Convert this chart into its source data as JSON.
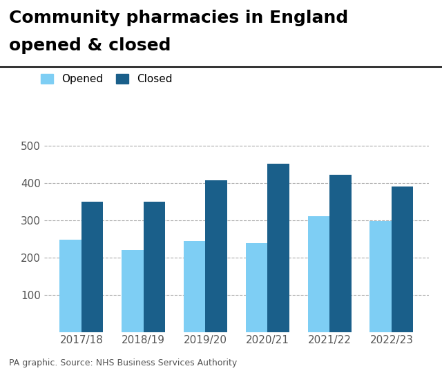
{
  "years": [
    "2017/18",
    "2018/19",
    "2019/20",
    "2020/21",
    "2021/22",
    "2022/23"
  ],
  "opened": [
    247,
    220,
    243,
    238,
    310,
    297
  ],
  "closed": [
    350,
    350,
    407,
    452,
    422,
    390
  ],
  "color_opened": "#7ecef4",
  "color_closed": "#1a5f8a",
  "title_line1": "Community pharmacies in England",
  "title_line2": "opened & closed",
  "legend_opened": "Opened",
  "legend_closed": "Closed",
  "source": "PA graphic. Source: NHS Business Services Authority",
  "ylim": [
    0,
    520
  ],
  "yticks": [
    100,
    200,
    300,
    400,
    500
  ],
  "bar_width": 0.35,
  "background_color": "#ffffff",
  "grid_color": "#aaaaaa",
  "title_fontsize": 18,
  "tick_fontsize": 11,
  "source_fontsize": 9,
  "legend_fontsize": 11
}
